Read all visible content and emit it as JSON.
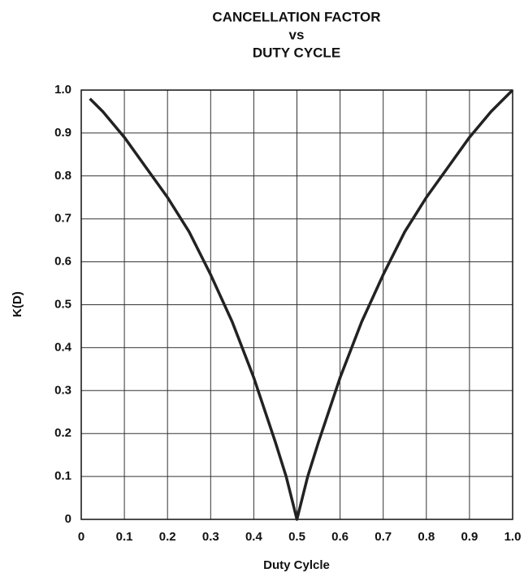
{
  "chart_data": {
    "type": "line",
    "title": [
      "CANCELLATION FACTOR",
      "vs",
      "DUTY CYCLE"
    ],
    "xlabel": "Duty Cylcle",
    "ylabel": "K(D)",
    "x": [
      0.02,
      0.05,
      0.1,
      0.15,
      0.2,
      0.25,
      0.3,
      0.35,
      0.4,
      0.45,
      0.475,
      0.5,
      0.525,
      0.55,
      0.6,
      0.65,
      0.7,
      0.75,
      0.8,
      0.85,
      0.9,
      0.95,
      1.0
    ],
    "series": [
      {
        "color": "#222222",
        "values": [
          0.98,
          0.95,
          0.89,
          0.82,
          0.75,
          0.67,
          0.57,
          0.46,
          0.33,
          0.18,
          0.1,
          0,
          0.1,
          0.18,
          0.33,
          0.46,
          0.57,
          0.67,
          0.75,
          0.82,
          0.89,
          0.95,
          1.0
        ]
      }
    ],
    "xlim": [
      0,
      1
    ],
    "ylim": [
      0,
      1
    ],
    "xticks": [
      0,
      0.1,
      0.2,
      0.3,
      0.4,
      0.5,
      0.6,
      0.7,
      0.8,
      0.9,
      {
        "value": 1,
        "label": "1.0"
      }
    ],
    "yticks": [
      0,
      0.1,
      0.2,
      0.3,
      0.4,
      0.5,
      0.6,
      0.7,
      0.8,
      0.9,
      {
        "value": 1,
        "label": "1.0"
      }
    ],
    "grid": true
  }
}
